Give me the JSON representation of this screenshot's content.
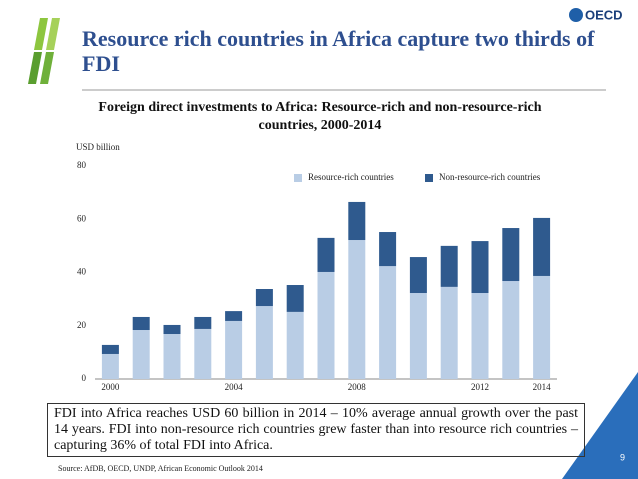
{
  "slide": {
    "title": "Resource rich countries in Africa capture two thirds of FDI",
    "logo": "OECD",
    "callout": "FDI into Africa reaches USD 60 billion in 2014 – 10% average annual growth over the past 14 years. FDI into non-resource rich countries grew faster than into resource rich countries – capturing 36% of total FDI into Africa.",
    "source": "Source: AfDB, OECD, UNDP, African Economic Outlook 2014",
    "page_number": "9"
  },
  "chart_data": {
    "type": "stacked_bar",
    "title": "Foreign direct investments to Africa: Resource-rich and non-resource-rich countries, 2000-2014",
    "y_label": "USD billion",
    "categories": [
      "2000",
      null,
      null,
      null,
      "2004",
      null,
      null,
      null,
      "2008",
      null,
      null,
      null,
      "2012",
      null,
      "2014"
    ],
    "series": [
      {
        "name": "Resource-rich countries",
        "color": "#b9cde5",
        "values": [
          9.4,
          18.4,
          16.9,
          18.8,
          21.8,
          27.4,
          25.2,
          40.2,
          52.2,
          42.4,
          32.3,
          34.6,
          32.3,
          36.8,
          38.7
        ]
      },
      {
        "name": "Non-resource-rich countries",
        "color": "#2f5a8e",
        "values": [
          3.4,
          4.9,
          3.4,
          4.5,
          3.7,
          6.4,
          10.1,
          12.8,
          14.3,
          12.8,
          13.5,
          15.4,
          19.5,
          19.9,
          21.8
        ]
      }
    ],
    "ylim": [
      0,
      80
    ],
    "yticks": [
      0,
      20,
      40,
      60,
      80
    ],
    "grid": false,
    "legend": "top-right"
  }
}
